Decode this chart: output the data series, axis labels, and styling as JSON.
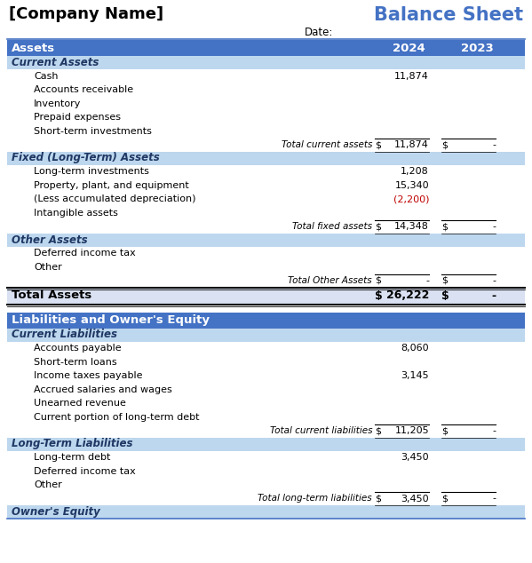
{
  "company_name": "[Company Name]",
  "title": "Balance Sheet",
  "date_label": "Date:",
  "years": [
    "2024",
    "2023"
  ],
  "header_bg": "#4472C4",
  "header_text": "#FFFFFF",
  "subheader_bg": "#BDD7EE",
  "italic_bold_text": "#1F3864",
  "neg_text": "#C00000",
  "rows": [
    {
      "type": "header",
      "label": "Assets",
      "val2024": "2024",
      "val2023": "2023"
    },
    {
      "type": "subheader",
      "label": "Current Assets",
      "val2024": "",
      "val2023": ""
    },
    {
      "type": "item",
      "label": "Cash",
      "val2024": "11,874",
      "val2023": "",
      "negative": false
    },
    {
      "type": "item",
      "label": "Accounts receivable",
      "val2024": "",
      "val2023": "",
      "negative": false
    },
    {
      "type": "item",
      "label": "Inventory",
      "val2024": "",
      "val2023": "",
      "negative": false
    },
    {
      "type": "item",
      "label": "Prepaid expenses",
      "val2024": "",
      "val2023": "",
      "negative": false
    },
    {
      "type": "item",
      "label": "Short-term investments",
      "val2024": "",
      "val2023": "",
      "negative": false
    },
    {
      "type": "total",
      "label": "Total current assets",
      "val2024": "11,874",
      "val2023": "-"
    },
    {
      "type": "subheader",
      "label": "Fixed (Long-Term) Assets",
      "val2024": "",
      "val2023": ""
    },
    {
      "type": "item",
      "label": "Long-term investments",
      "val2024": "1,208",
      "val2023": "",
      "negative": false
    },
    {
      "type": "item",
      "label": "Property, plant, and equipment",
      "val2024": "15,340",
      "val2023": "",
      "negative": false
    },
    {
      "type": "item",
      "label": "(Less accumulated depreciation)",
      "val2024": "(2,200)",
      "val2023": "",
      "negative": true
    },
    {
      "type": "item",
      "label": "Intangible assets",
      "val2024": "",
      "val2023": "",
      "negative": false
    },
    {
      "type": "total",
      "label": "Total fixed assets",
      "val2024": "14,348",
      "val2023": "-"
    },
    {
      "type": "subheader",
      "label": "Other Assets",
      "val2024": "",
      "val2023": ""
    },
    {
      "type": "item",
      "label": "Deferred income tax",
      "val2024": "",
      "val2023": "",
      "negative": false
    },
    {
      "type": "item",
      "label": "Other",
      "val2024": "",
      "val2023": "",
      "negative": false
    },
    {
      "type": "total",
      "label": "Total Other Assets",
      "val2024": "-",
      "val2023": "-"
    },
    {
      "type": "grand_total",
      "label": "Total Assets",
      "val2024": "26,222",
      "val2023": "-"
    },
    {
      "type": "gap"
    },
    {
      "type": "header2",
      "label": "Liabilities and Owner's Equity",
      "val2024": "",
      "val2023": ""
    },
    {
      "type": "subheader",
      "label": "Current Liabilities",
      "val2024": "",
      "val2023": ""
    },
    {
      "type": "item",
      "label": "Accounts payable",
      "val2024": "8,060",
      "val2023": "",
      "negative": false
    },
    {
      "type": "item",
      "label": "Short-term loans",
      "val2024": "",
      "val2023": "",
      "negative": false
    },
    {
      "type": "item",
      "label": "Income taxes payable",
      "val2024": "3,145",
      "val2023": "",
      "negative": false
    },
    {
      "type": "item",
      "label": "Accrued salaries and wages",
      "val2024": "",
      "val2023": "",
      "negative": false
    },
    {
      "type": "item",
      "label": "Unearned revenue",
      "val2024": "",
      "val2023": "",
      "negative": false
    },
    {
      "type": "item",
      "label": "Current portion of long-term debt",
      "val2024": "",
      "val2023": "",
      "negative": false
    },
    {
      "type": "total",
      "label": "Total current liabilities",
      "val2024": "11,205",
      "val2023": "-"
    },
    {
      "type": "subheader",
      "label": "Long-Term Liabilities",
      "val2024": "",
      "val2023": ""
    },
    {
      "type": "item",
      "label": "Long-term debt",
      "val2024": "3,450",
      "val2023": "",
      "negative": false
    },
    {
      "type": "item",
      "label": "Deferred income tax",
      "val2024": "",
      "val2023": "",
      "negative": false
    },
    {
      "type": "item",
      "label": "Other",
      "val2024": "",
      "val2023": "",
      "negative": false
    },
    {
      "type": "total",
      "label": "Total long-term liabilities",
      "val2024": "3,450",
      "val2023": "-"
    },
    {
      "type": "subheader_partial",
      "label": "Owner's Equity",
      "val2024": "",
      "val2023": ""
    }
  ]
}
